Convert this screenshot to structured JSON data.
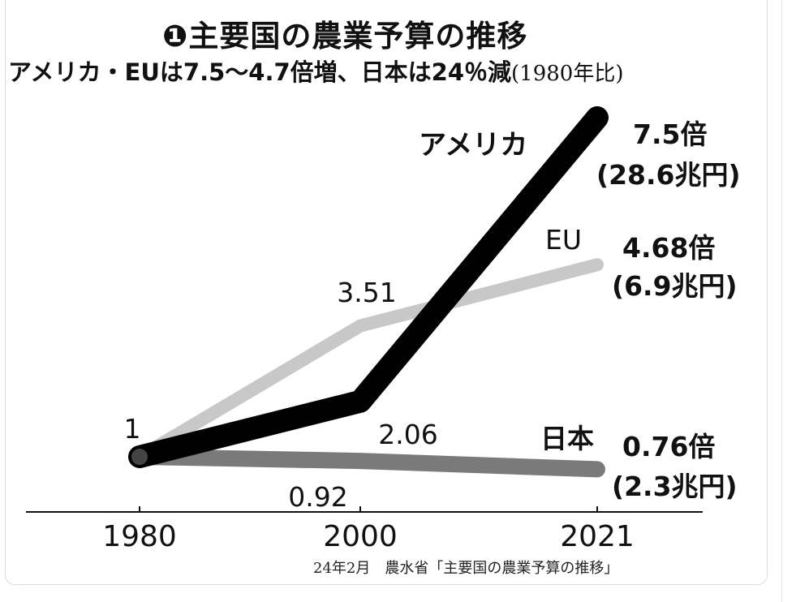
{
  "title": "❶主要国の農業予算の推移",
  "subtitle": "アメリカ・EUは7.5〜4.7倍増、日本は24％減",
  "subtitle_paren": "(1980年比)",
  "source": "24年2月　農水省「主要国の農業予算の推移」",
  "chart_data": {
    "type": "line",
    "title": "❶主要国の農業予算の推移",
    "subtitle": "アメリカ・EUは7.5〜4.7倍増、日本は24％減(1980年比)",
    "x": [
      "1980",
      "2000",
      "2021"
    ],
    "series": [
      {
        "name": "アメリカ",
        "values": [
          1,
          2.06,
          7.5
        ],
        "color": "#000000"
      },
      {
        "name": "EU",
        "values": [
          1,
          3.51,
          4.68
        ],
        "color": "#c8c8c8"
      },
      {
        "name": "日本",
        "values": [
          1,
          0.92,
          0.76
        ],
        "color": "#7a7a7a"
      }
    ],
    "start_label": "1",
    "point_labels": {
      "eu_2000": "3.51",
      "us_2000": "2.06",
      "jp_2000": "0.92"
    },
    "end_labels": [
      {
        "series": "アメリカ",
        "ratio": "7.5倍",
        "amount": "(28.6兆円)"
      },
      {
        "series": "EU",
        "ratio": "4.68倍",
        "amount": "(6.9兆円)"
      },
      {
        "series": "日本",
        "ratio": "0.76倍",
        "amount": "(2.3兆円)"
      }
    ],
    "xlabel": "",
    "ylabel": "",
    "ylim": [
      0,
      8
    ],
    "grid": false,
    "legend": "inline labels at line ends"
  }
}
